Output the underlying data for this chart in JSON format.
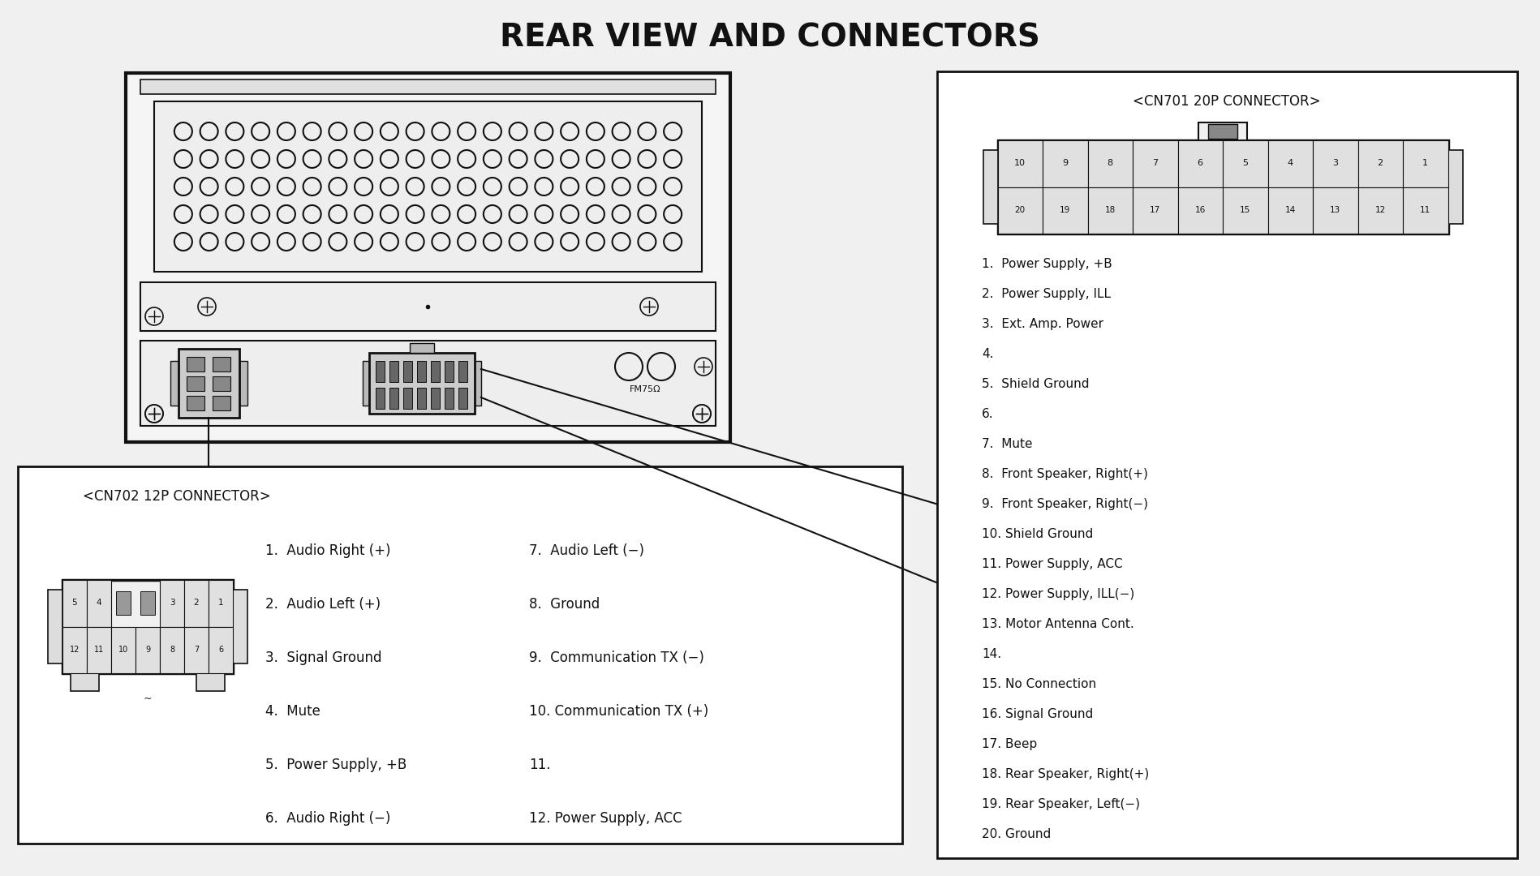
{
  "title": "REAR VIEW AND CONNECTORS",
  "bg_color": "#f0f0f0",
  "fg_color": "#111111",
  "white": "#ffffff",
  "light_gray": "#e8e8e8",
  "cn701_title": "<CN701 20P CONNECTOR>",
  "cn701_row1": [
    "10",
    "9",
    "8",
    "7",
    "6",
    "5",
    "4",
    "3",
    "2",
    "1"
  ],
  "cn701_row2": [
    "20",
    "19",
    "18",
    "17",
    "16",
    "15",
    "14",
    "13",
    "12",
    "11"
  ],
  "cn701_pins": [
    "1.  Power Supply, +B",
    "2.  Power Supply, ILL",
    "3.  Ext. Amp. Power",
    "4.",
    "5.  Shield Ground",
    "6.",
    "7.  Mute",
    "8.  Front Speaker, Right(+)",
    "9.  Front Speaker, Right(−)",
    "10. Shield Ground",
    "11. Power Supply, ACC",
    "12. Power Supply, ILL(−)",
    "13. Motor Antenna Cont.",
    "14.",
    "15. No Connection",
    "16. Signal Ground",
    "17. Beep",
    "18. Rear Speaker, Right(+)",
    "19. Rear Speaker, Left(−)",
    "20. Ground"
  ],
  "cn702_title": "<CN702 12P CONNECTOR>",
  "cn702_row1": [
    "5",
    "4",
    "",
    "",
    "3",
    "2",
    "1"
  ],
  "cn702_row2": [
    "12",
    "11",
    "10",
    "9",
    "8",
    "7",
    "6"
  ],
  "cn702_pins_left": [
    "1.  Audio Right (+)",
    "2.  Audio Left (+)",
    "3.  Signal Ground",
    "4.  Mute",
    "5.  Power Supply, +B",
    "6.  Audio Right (−)"
  ],
  "cn702_pins_right": [
    "7.  Audio Left (−)",
    "8.  Ground",
    "9.  Communication TX (−)",
    "10. Communication TX (+)",
    "11.",
    "12. Power Supply, ACC"
  ]
}
